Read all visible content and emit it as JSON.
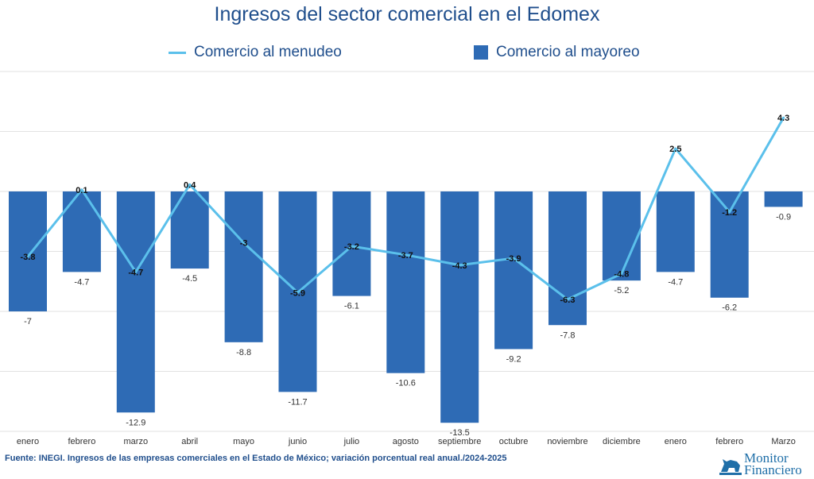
{
  "chart_data": {
    "type": "bar",
    "title": "Ingresos del sector comercial en el Edomex",
    "xlabel": "",
    "ylabel": "",
    "categories": [
      "enero",
      "febrero",
      "marzo",
      "abril",
      "mayo",
      "junio",
      "julio",
      "agosto",
      "septiembre",
      "octubre",
      "noviembre",
      "diciembre",
      "enero",
      "febrero",
      "Marzo"
    ],
    "series": [
      {
        "name": "Comercio al mayoreo",
        "type": "bar",
        "color": "#2e6bb5",
        "values": [
          -7,
          -4.7,
          -12.9,
          -4.5,
          -8.8,
          -11.7,
          -6.1,
          -10.6,
          -13.5,
          -9.2,
          -7.8,
          -5.2,
          -4.7,
          -6.2,
          -0.9
        ]
      },
      {
        "name": "Comercio al menudeo",
        "type": "line",
        "color": "#5bc0eb",
        "values": [
          -3.8,
          0.1,
          -4.7,
          0.4,
          -3,
          -5.9,
          -3.2,
          -3.7,
          -4.3,
          -3.9,
          -6.3,
          -4.8,
          2.5,
          -1.2,
          4.3
        ]
      }
    ],
    "ylim": [
      -14,
      7
    ],
    "grid": true,
    "legend": "top"
  },
  "source": "Fuente: INEGI. Ingresos de las empresas comerciales en el Estado de México; variación porcentual real anual./2024-2025",
  "logo": {
    "line1": "Monitor",
    "line2": "Financiero"
  }
}
